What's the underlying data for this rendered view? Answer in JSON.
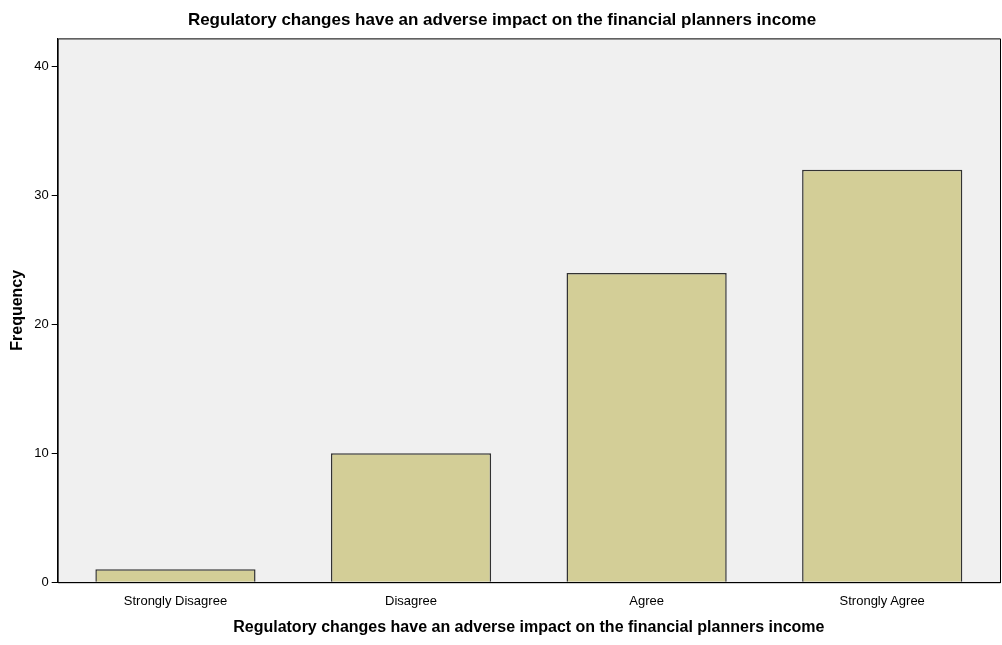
{
  "chart_data": {
    "type": "bar",
    "title": "Regulatory changes have an adverse impact on the financial planners income",
    "xlabel": "Regulatory changes have an adverse impact on the financial planners income",
    "ylabel": "Frequency",
    "categories": [
      "Strongly Disagree",
      "Disagree",
      "Agree",
      "Strongly Agree"
    ],
    "values": [
      1,
      10,
      24,
      32
    ],
    "color": "#d3ce97",
    "ylim": [
      0,
      42.2
    ],
    "yticks": [
      0,
      10,
      20,
      30,
      40
    ],
    "grid": false,
    "legend": false
  }
}
